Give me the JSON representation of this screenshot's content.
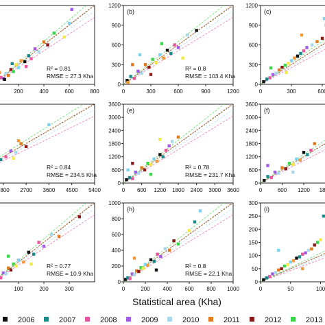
{
  "figure": {
    "xlabel": "Statistical area (Kha)",
    "legend": [
      {
        "year": "2006",
        "color": "#111111"
      },
      {
        "year": "2007",
        "color": "#1a8a8a"
      },
      {
        "year": "2008",
        "color": "#e8559c"
      },
      {
        "year": "2009",
        "color": "#a15be6"
      },
      {
        "year": "2010",
        "color": "#a9d7ec"
      },
      {
        "year": "2011",
        "color": "#e07b1f"
      },
      {
        "year": "2012",
        "color": "#8b1a1a"
      },
      {
        "year": "2013",
        "color": "#3ad54a"
      }
    ]
  },
  "chart_data": [
    {
      "type": "scatter",
      "panel": "",
      "xticks": [
        "200",
        "400",
        "600",
        "800"
      ],
      "yticks": [],
      "xlim": [
        0,
        800
      ],
      "ylim": [
        0,
        800
      ],
      "annotation": {
        "r2": "R² = 0.81",
        "rmse": "RMSE = 27.3 Kha"
      },
      "points": [
        [
          20,
          25
        ],
        [
          40,
          30
        ],
        [
          60,
          70
        ],
        [
          80,
          60
        ],
        [
          100,
          110
        ],
        [
          120,
          90
        ],
        [
          140,
          150
        ],
        [
          160,
          130
        ],
        [
          180,
          200
        ],
        [
          200,
          170
        ],
        [
          220,
          240
        ],
        [
          250,
          230
        ],
        [
          280,
          290
        ],
        [
          300,
          260
        ],
        [
          330,
          360
        ],
        [
          360,
          330
        ],
        [
          400,
          430
        ],
        [
          430,
          400
        ],
        [
          480,
          520
        ],
        [
          560,
          480
        ],
        [
          600,
          620
        ],
        [
          50,
          120
        ],
        [
          90,
          50
        ],
        [
          150,
          210
        ],
        [
          260,
          180
        ],
        [
          620,
          760
        ]
      ]
    },
    {
      "type": "scatter",
      "panel": "(b)",
      "xticks": [
        "0",
        "300",
        "600",
        "900",
        "1200"
      ],
      "yticks": [
        "0",
        "300",
        "600",
        "900",
        "1200"
      ],
      "xlim": [
        0,
        1200
      ],
      "ylim": [
        0,
        1200
      ],
      "annotation": {
        "r2": "R² = 0.8",
        "rmse": "RMSE = 103.4 Kha"
      },
      "points": [
        [
          40,
          60
        ],
        [
          80,
          120
        ],
        [
          120,
          90
        ],
        [
          160,
          200
        ],
        [
          200,
          170
        ],
        [
          240,
          300
        ],
        [
          280,
          260
        ],
        [
          320,
          380
        ],
        [
          360,
          330
        ],
        [
          400,
          450
        ],
        [
          440,
          400
        ],
        [
          480,
          520
        ],
        [
          520,
          470
        ],
        [
          560,
          600
        ],
        [
          600,
          560
        ],
        [
          700,
          750
        ],
        [
          100,
          300
        ],
        [
          300,
          150
        ],
        [
          420,
          620
        ],
        [
          650,
          400
        ],
        [
          180,
          450
        ],
        [
          50,
          30
        ],
        [
          800,
          820
        ]
      ]
    },
    {
      "type": "scatter",
      "panel": "(c)",
      "xticks": [
        "0",
        "300",
        "600"
      ],
      "yticks": [
        "0",
        "300",
        "600",
        "900",
        "1200"
      ],
      "xlim": [
        0,
        700
      ],
      "ylim": [
        0,
        1200
      ],
      "annotation": {
        "r2": "",
        "rmse": ""
      },
      "points": [
        [
          30,
          40
        ],
        [
          60,
          80
        ],
        [
          90,
          100
        ],
        [
          120,
          150
        ],
        [
          150,
          170
        ],
        [
          180,
          220
        ],
        [
          210,
          260
        ],
        [
          240,
          290
        ],
        [
          270,
          320
        ],
        [
          300,
          360
        ],
        [
          330,
          400
        ],
        [
          360,
          430
        ],
        [
          390,
          470
        ],
        [
          420,
          510
        ],
        [
          450,
          560
        ],
        [
          500,
          600
        ],
        [
          550,
          650
        ],
        [
          600,
          700
        ],
        [
          100,
          250
        ],
        [
          250,
          180
        ],
        [
          620,
          1000
        ],
        [
          400,
          750
        ],
        [
          640,
          900
        ]
      ]
    },
    {
      "type": "scatter",
      "panel": "",
      "xticks": [
        "1800",
        "2700",
        "3600",
        "4500",
        "5400"
      ],
      "yticks": [],
      "xlim": [
        1400,
        5400
      ],
      "ylim": [
        0,
        5400
      ],
      "annotation": {
        "r2": "R² = 0.84",
        "rmse": "RMSE = 234.5 Kha"
      },
      "points": [
        [
          1500,
          1300
        ],
        [
          1700,
          1600
        ],
        [
          1900,
          1800
        ],
        [
          2100,
          2200
        ],
        [
          2300,
          2100
        ],
        [
          2500,
          2700
        ],
        [
          2700,
          2500
        ],
        [
          1600,
          2000
        ],
        [
          2200,
          1700
        ],
        [
          3600,
          4000
        ],
        [
          2400,
          2900
        ]
      ]
    },
    {
      "type": "scatter",
      "panel": "(e)",
      "xticks": [
        "0",
        "600",
        "1200",
        "1800",
        "2400",
        "3000",
        "3600"
      ],
      "yticks": [
        "0",
        "600",
        "1200",
        "1800",
        "2400",
        "3000",
        "3600"
      ],
      "xlim": [
        0,
        3600
      ],
      "ylim": [
        0,
        3600
      ],
      "annotation": {
        "r2": "R² = 0.78",
        "rmse": "RMSE = 231.7 Kha"
      },
      "points": [
        [
          100,
          150
        ],
        [
          200,
          250
        ],
        [
          300,
          200
        ],
        [
          400,
          500
        ],
        [
          500,
          450
        ],
        [
          600,
          700
        ],
        [
          700,
          600
        ],
        [
          800,
          900
        ],
        [
          900,
          850
        ],
        [
          1000,
          1100
        ],
        [
          1100,
          1000
        ],
        [
          1200,
          1300
        ],
        [
          1300,
          1200
        ],
        [
          1400,
          1500
        ],
        [
          1500,
          1700
        ],
        [
          1600,
          1900
        ],
        [
          1800,
          2100
        ],
        [
          300,
          900
        ],
        [
          900,
          400
        ],
        [
          1200,
          2000
        ],
        [
          150,
          600
        ]
      ]
    },
    {
      "type": "scatter",
      "panel": "(f)",
      "xticks": [
        "0",
        "600",
        "1200",
        "1800"
      ],
      "yticks": [
        "0",
        "600",
        "1200",
        "1800",
        "2400",
        "3000",
        "3600"
      ],
      "xlim": [
        0,
        2000
      ],
      "ylim": [
        0,
        3600
      ],
      "annotation": {
        "r2": "",
        "rmse": ""
      },
      "points": [
        [
          100,
          120
        ],
        [
          200,
          300
        ],
        [
          300,
          250
        ],
        [
          400,
          500
        ],
        [
          500,
          450
        ],
        [
          600,
          700
        ],
        [
          700,
          650
        ],
        [
          800,
          900
        ],
        [
          900,
          850
        ],
        [
          1000,
          1100
        ],
        [
          1100,
          1050
        ],
        [
          1200,
          1400
        ],
        [
          1300,
          1300
        ],
        [
          1400,
          1500
        ],
        [
          200,
          800
        ],
        [
          900,
          500
        ],
        [
          1500,
          1800
        ]
      ]
    },
    {
      "type": "scatter",
      "panel": "",
      "xticks": [
        "0",
        "100",
        "200",
        "300"
      ],
      "yticks": [],
      "xlim": [
        0,
        400
      ],
      "ylim": [
        0,
        400
      ],
      "annotation": {
        "r2": "R² = 0.77",
        "rmse": "RMSE = 10.9 Kha"
      },
      "points": [
        [
          10,
          12
        ],
        [
          20,
          25
        ],
        [
          30,
          20
        ],
        [
          40,
          45
        ],
        [
          50,
          40
        ],
        [
          60,
          70
        ],
        [
          70,
          60
        ],
        [
          80,
          90
        ],
        [
          90,
          80
        ],
        [
          100,
          110
        ],
        [
          120,
          100
        ],
        [
          140,
          150
        ],
        [
          160,
          140
        ],
        [
          180,
          200
        ],
        [
          200,
          180
        ],
        [
          230,
          240
        ],
        [
          260,
          230
        ],
        [
          340,
          330
        ],
        [
          60,
          130
        ],
        [
          150,
          90
        ]
      ]
    },
    {
      "type": "scatter",
      "panel": "(h)",
      "xticks": [
        "0",
        "200",
        "400",
        "600",
        "800",
        "1000"
      ],
      "yticks": [
        "0",
        "200",
        "400",
        "600",
        "800",
        "1000"
      ],
      "xlim": [
        0,
        1000
      ],
      "ylim": [
        0,
        1000
      ],
      "annotation": {
        "r2": "R² = 0.8",
        "rmse": "RMSE = 22.1 Kha"
      },
      "points": [
        [
          20,
          30
        ],
        [
          40,
          50
        ],
        [
          60,
          40
        ],
        [
          80,
          100
        ],
        [
          100,
          90
        ],
        [
          120,
          140
        ],
        [
          140,
          130
        ],
        [
          160,
          180
        ],
        [
          180,
          170
        ],
        [
          200,
          220
        ],
        [
          220,
          210
        ],
        [
          250,
          280
        ],
        [
          280,
          260
        ],
        [
          310,
          350
        ],
        [
          340,
          320
        ],
        [
          380,
          420
        ],
        [
          420,
          400
        ],
        [
          460,
          520
        ],
        [
          500,
          480
        ],
        [
          600,
          650
        ],
        [
          700,
          900
        ],
        [
          100,
          300
        ],
        [
          300,
          150
        ],
        [
          650,
          760
        ]
      ]
    },
    {
      "type": "scatter",
      "panel": "(i)",
      "xticks": [
        "0",
        "50",
        "100"
      ],
      "yticks": [
        "0",
        "50",
        "100",
        "150",
        "200",
        "250",
        "300"
      ],
      "xlim": [
        0,
        120
      ],
      "ylim": [
        0,
        300
      ],
      "annotation": {
        "r2": "",
        "rmse": ""
      },
      "points": [
        [
          5,
          8
        ],
        [
          10,
          15
        ],
        [
          15,
          20
        ],
        [
          20,
          30
        ],
        [
          25,
          35
        ],
        [
          30,
          45
        ],
        [
          35,
          50
        ],
        [
          40,
          60
        ],
        [
          45,
          65
        ],
        [
          50,
          75
        ],
        [
          55,
          80
        ],
        [
          60,
          90
        ],
        [
          65,
          95
        ],
        [
          70,
          105
        ],
        [
          75,
          110
        ],
        [
          80,
          120
        ],
        [
          85,
          125
        ],
        [
          90,
          140
        ],
        [
          95,
          150
        ],
        [
          100,
          160
        ],
        [
          30,
          120
        ],
        [
          70,
          50
        ],
        [
          110,
          220
        ],
        [
          105,
          250
        ]
      ]
    }
  ]
}
